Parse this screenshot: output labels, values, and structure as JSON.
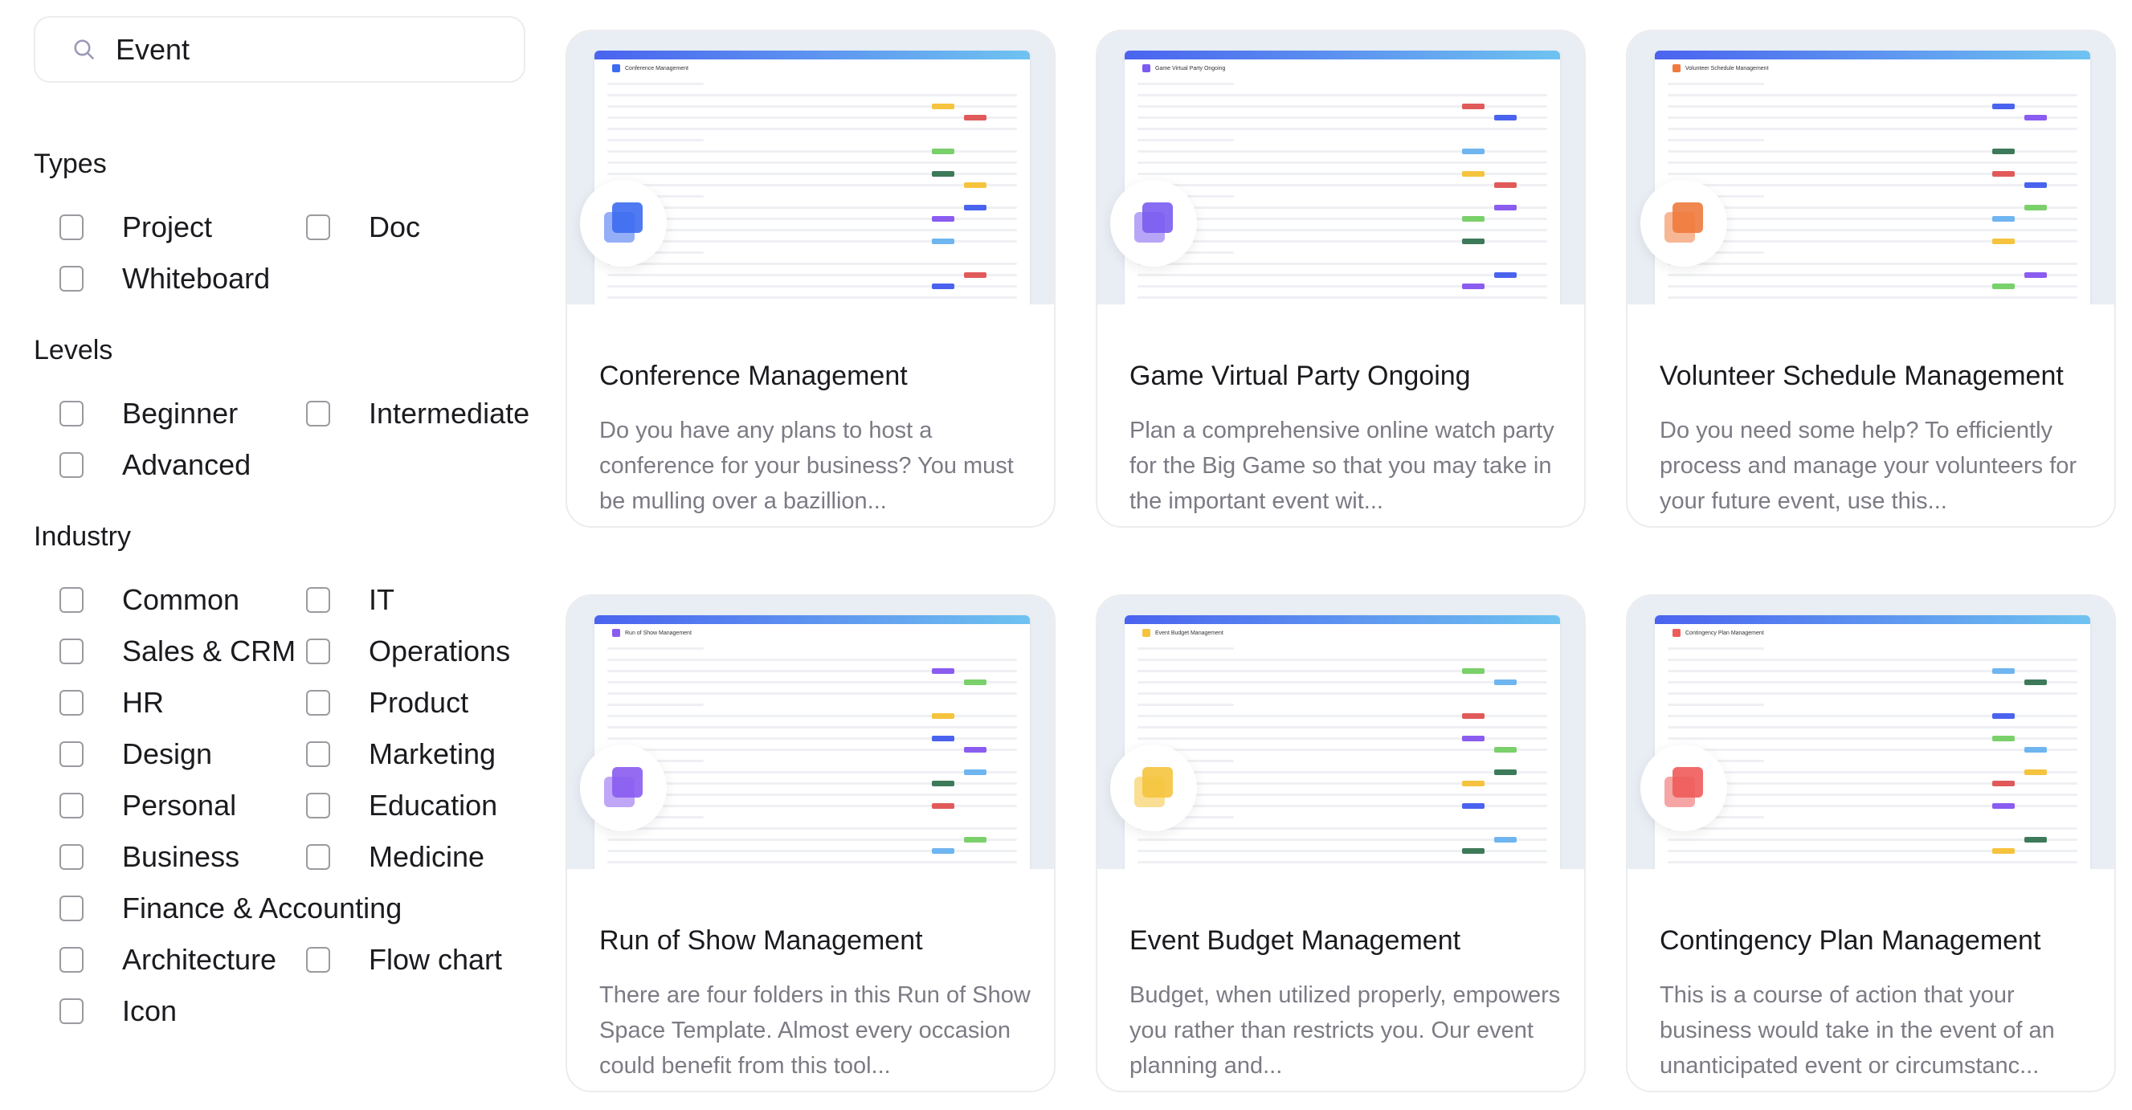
{
  "search": {
    "value": "Event",
    "icon": "search-icon"
  },
  "filters": {
    "types": {
      "label": "Types",
      "options": [
        "Project",
        "Doc",
        "Whiteboard"
      ]
    },
    "levels": {
      "label": "Levels",
      "options": [
        "Beginner",
        "Intermediate",
        "Advanced"
      ]
    },
    "industry": {
      "label": "Industry",
      "options": [
        "Common",
        "IT",
        "Sales & CRM",
        "Operations",
        "HR",
        "Product",
        "Design",
        "Marketing",
        "Personal",
        "Education",
        "Business",
        "Medicine",
        "Finance & Accounting",
        "Architecture",
        "Flow chart",
        "Icon"
      ]
    }
  },
  "cards": [
    {
      "title": "Conference Management",
      "description": "Do you have any plans to host a conference for your business? You must be mulling over a bazillion...",
      "color": "#3d6cf0"
    },
    {
      "title": "Game Virtual Party Ongoing",
      "description": "Plan a comprehensive online watch party for the Big Game so that you may take in the important event wit...",
      "color": "#7b5cf0"
    },
    {
      "title": "Volunteer Schedule Management",
      "description": "Do you need some help? To efficiently process and manage your volunteers for your future event, use this...",
      "color": "#f07a3d"
    },
    {
      "title": "Run of Show Management",
      "description": "There are four folders in this Run of Show Space Template. Almost every occasion could benefit from this tool...",
      "color": "#8a5cf0"
    },
    {
      "title": "Event Budget Management",
      "description": "Budget, when utilized properly, empowers you rather than restricts you. Our event planning and...",
      "color": "#f5c33d"
    },
    {
      "title": "Contingency Plan Management",
      "description": "This is a course of action that your business would take in the event of an unanticipated event or circumstanc...",
      "color": "#ef5b5b"
    }
  ]
}
